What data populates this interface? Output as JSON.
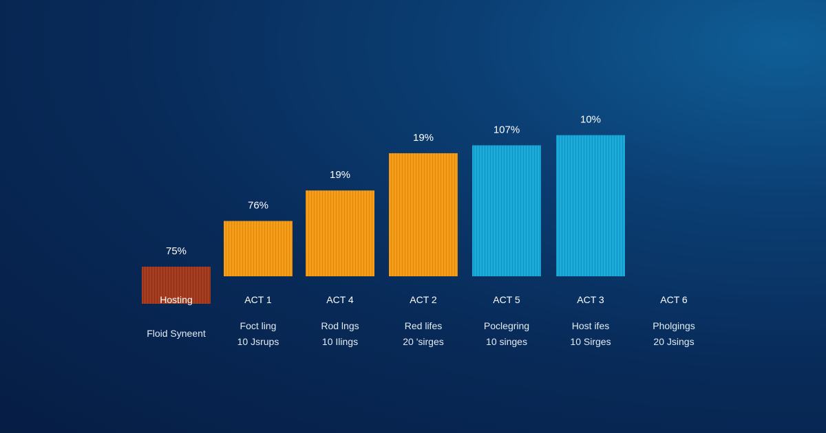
{
  "colors": {
    "background": "#082a58",
    "text": "#ffffff",
    "subtext": "#e3ecf6",
    "red": "#a3391c",
    "orange": "#f59a12",
    "cyan": "#16a7d8"
  },
  "chart_data": {
    "type": "bar",
    "title": "",
    "xlabel": "",
    "ylabel": "",
    "grid": false,
    "ylim": [
      0,
      140
    ],
    "categories": [
      "Hosting",
      "ACT 1",
      "ACT 4",
      "ACT 2",
      "ACT 5",
      "ACT 3",
      "ACT 6"
    ],
    "values": [
      33,
      49,
      76,
      109,
      116,
      125,
      null
    ],
    "data_labels": [
      "75%",
      "76%",
      "19%",
      "19%",
      "107%",
      "10%",
      ""
    ],
    "bar_colors": [
      "red",
      "orange",
      "orange",
      "orange",
      "cyan",
      "cyan",
      "none"
    ],
    "descriptions": [
      [
        "Floid Syneent",
        ""
      ],
      [
        "Foct ling",
        "10 Jsrups"
      ],
      [
        "Rod lngs",
        "10 Ilings"
      ],
      [
        "Red lifes",
        "20 'sirges"
      ],
      [
        "Poclegring",
        "10 singes"
      ],
      [
        "Host ifes",
        "10 Sirges"
      ],
      [
        "Pholgings",
        "20 Jsings"
      ]
    ]
  }
}
